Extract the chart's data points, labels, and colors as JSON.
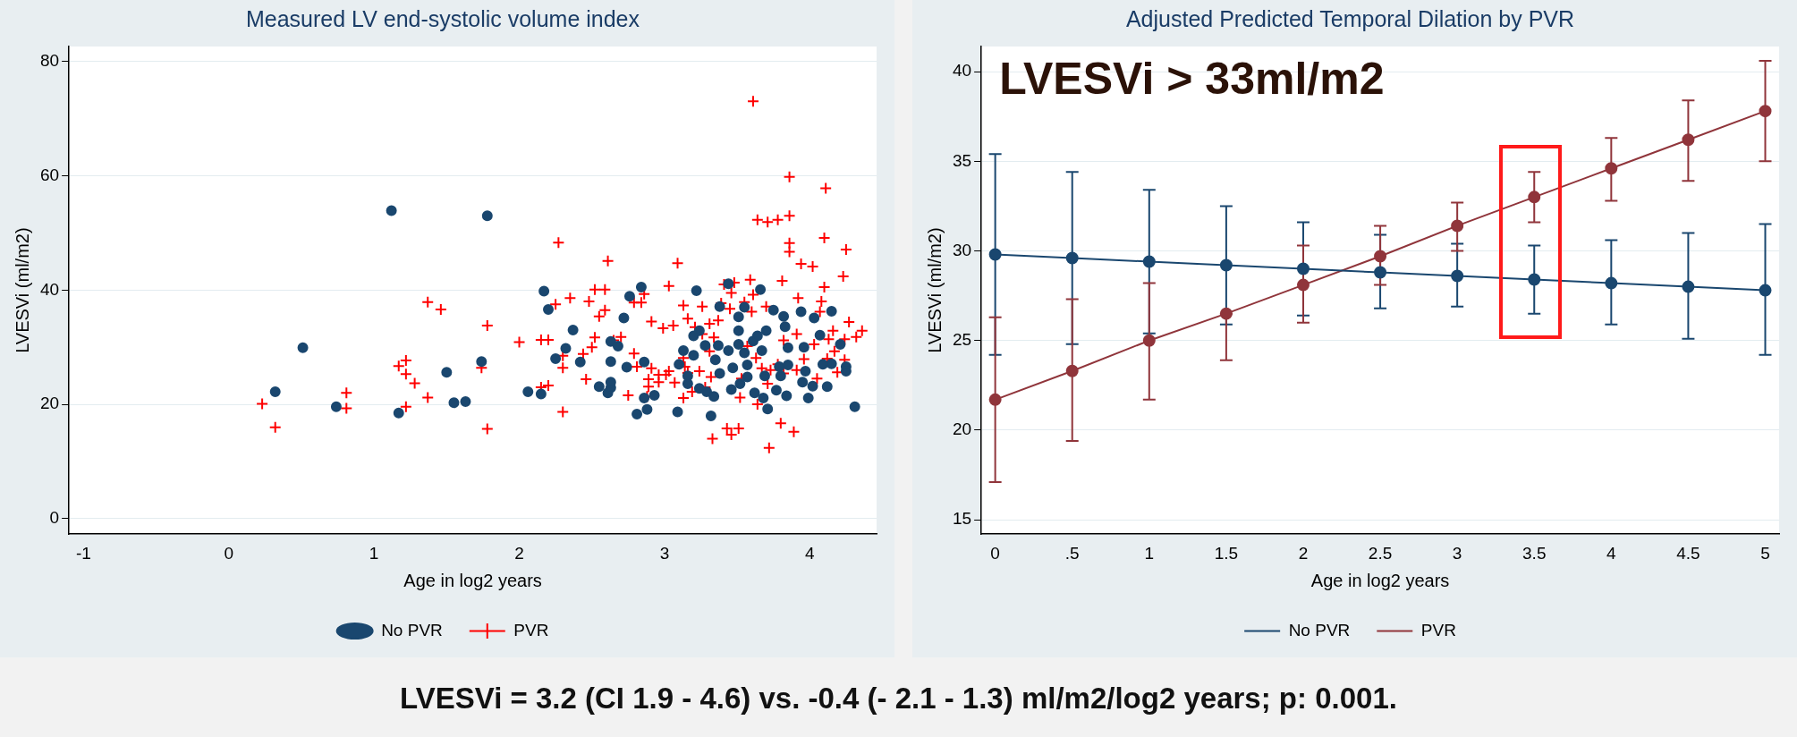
{
  "chart_data": [
    {
      "type": "scatter",
      "title": "Measured LV end-systolic volume index",
      "xlabel": "Age in log2 years",
      "ylabel": "LVESVi (ml/m2)",
      "xlim": [
        -1.1,
        4.46
      ],
      "ylim": [
        -2.7,
        82.6
      ],
      "xticks": [
        -1,
        0,
        1,
        2,
        3,
        4
      ],
      "yticks": [
        0,
        20,
        40,
        60,
        80
      ],
      "grid": "y",
      "legend": "bottom",
      "series": [
        {
          "name": "No PVR",
          "color": "#1a476f",
          "marker": "circle",
          "x": [
            1.12,
            1.78,
            0.51,
            0.32,
            0.74,
            1.17,
            1.5,
            1.55,
            1.63,
            1.74,
            2.06,
            2.15,
            2.17,
            2.2,
            2.25,
            2.32,
            2.37,
            2.42,
            2.55,
            2.61,
            2.63,
            2.63,
            2.63,
            2.63,
            2.68,
            2.72,
            2.74,
            2.76,
            2.81,
            2.84,
            2.86,
            2.86,
            2.88,
            2.93,
            3.09,
            3.1,
            3.13,
            3.16,
            3.16,
            3.2,
            3.2,
            3.22,
            3.24,
            3.24,
            3.28,
            3.29,
            3.32,
            3.34,
            3.35,
            3.37,
            3.38,
            3.38,
            3.44,
            3.44,
            3.46,
            3.47,
            3.51,
            3.51,
            3.51,
            3.52,
            3.55,
            3.55,
            3.57,
            3.57,
            3.61,
            3.62,
            3.64,
            3.66,
            3.67,
            3.68,
            3.7,
            3.71,
            3.69,
            3.75,
            3.77,
            3.79,
            3.8,
            3.82,
            3.83,
            3.84,
            3.85,
            3.85,
            3.94,
            3.95,
            3.96,
            3.97,
            3.99,
            4.02,
            4.03,
            4.07,
            4.09,
            4.12,
            4.15,
            4.15,
            4.21,
            4.25,
            4.25,
            4.31
          ],
          "values": [
            53.9,
            53,
            29.9,
            22.2,
            19.6,
            18.5,
            25.6,
            20.3,
            20.5,
            27.5,
            22.2,
            21.8,
            39.8,
            36.6,
            28,
            29.8,
            33,
            27.4,
            23.1,
            22,
            22.9,
            23.9,
            27.5,
            31,
            30.2,
            35.1,
            26.5,
            38.9,
            18.3,
            40.5,
            27.4,
            21.1,
            19.1,
            21.6,
            18.7,
            27,
            29.4,
            23.6,
            25,
            28.6,
            32,
            39.9,
            22.8,
            32.9,
            30.3,
            22.2,
            18,
            21.4,
            27.8,
            30.3,
            37.1,
            25.4,
            29.4,
            41.1,
            22.6,
            26.4,
            32.9,
            30.5,
            35.3,
            23.6,
            37,
            29,
            26.9,
            24.8,
            31.1,
            22,
            32,
            40.1,
            29.4,
            21.1,
            32.9,
            19.2,
            25,
            36.5,
            22.5,
            26.6,
            25,
            35.4,
            33.6,
            21.5,
            26.9,
            29.9,
            36.2,
            23.9,
            30,
            25.8,
            21.1,
            23.2,
            35.1,
            32.1,
            27,
            23.1,
            36.3,
            27.1,
            30.5,
            26.6,
            25.8,
            19.6
          ]
        },
        {
          "name": "PVR",
          "color": "#ff0000",
          "marker": "cross",
          "x": [
            0.23,
            0.32,
            0.81,
            0.81,
            1.17,
            1.22,
            1.22,
            1.28,
            1.22,
            1.37,
            1.46,
            1.37,
            1.78,
            1.74,
            1.78,
            2.0,
            2.15,
            2.2,
            2.15,
            2.2,
            2.25,
            2.27,
            2.3,
            2.3,
            2.3,
            2.35,
            2.44,
            2.46,
            2.48,
            2.5,
            2.52,
            2.52,
            2.55,
            2.59,
            2.59,
            2.61,
            2.65,
            2.7,
            2.75,
            2.79,
            2.79,
            2.81,
            2.84,
            2.86,
            2.88,
            2.89,
            2.89,
            2.91,
            2.91,
            2.96,
            2.96,
            2.99,
            3.01,
            3.03,
            3.03,
            3.06,
            3.07,
            3.09,
            3.13,
            3.13,
            3.13,
            3.14,
            3.16,
            3.16,
            3.19,
            3.21,
            3.24,
            3.26,
            3.26,
            3.28,
            3.31,
            3.31,
            3.32,
            3.33,
            3.34,
            3.37,
            3.39,
            3.41,
            3.43,
            3.45,
            3.46,
            3.46,
            3.48,
            3.51,
            3.52,
            3.53,
            3.55,
            3.57,
            3.59,
            3.6,
            3.61,
            3.61,
            3.63,
            3.64,
            3.64,
            3.67,
            3.7,
            3.71,
            3.71,
            3.72,
            3.73,
            3.78,
            3.78,
            3.8,
            3.81,
            3.82,
            3.82,
            3.86,
            3.86,
            3.86,
            3.86,
            3.89,
            3.91,
            3.91,
            3.92,
            3.94,
            3.96,
            4.02,
            4.03,
            4.05,
            4.07,
            4.08,
            4.1,
            4.1,
            4.11,
            4.12,
            4.13,
            4.16,
            4.17,
            4.19,
            4.23,
            4.24,
            4.24,
            4.25,
            4.27,
            4.32,
            4.36
          ],
          "values": [
            20.1,
            16,
            22,
            19.3,
            26.7,
            27.7,
            25.3,
            23.7,
            19.6,
            37.9,
            36.6,
            21.2,
            33.8,
            26.4,
            15.7,
            30.9,
            31.3,
            31.3,
            23,
            23.3,
            37.5,
            48.3,
            28.5,
            26.4,
            18.7,
            38.6,
            28.8,
            24.4,
            38,
            30,
            40.1,
            31.7,
            35.4,
            40.1,
            36.5,
            45.1,
            31.2,
            31.8,
            21.6,
            37.8,
            28.9,
            26.6,
            37.8,
            39.3,
            21.4,
            24.4,
            23.1,
            34.5,
            26.3,
            25.2,
            23.9,
            33.3,
            25.2,
            40.7,
            25.8,
            33.8,
            23.8,
            44.7,
            21.1,
            37.3,
            28.1,
            26.6,
            35,
            25.5,
            22.2,
            33.5,
            25.8,
            37.1,
            32.3,
            23,
            34.1,
            29.3,
            24.8,
            14,
            31.7,
            34.7,
            37.7,
            41,
            15.8,
            36.7,
            14.7,
            39.5,
            41.3,
            15.8,
            21.2,
            24.5,
            37.9,
            30.2,
            41.8,
            36.2,
            73,
            39.2,
            28.1,
            20,
            52.3,
            26.3,
            37.1,
            23.6,
            51.9,
            12.4,
            26,
            52.3,
            27,
            16.7,
            41.6,
            31.2,
            25.4,
            53,
            46.7,
            59.8,
            48.2,
            15.2,
            32.3,
            26,
            38.6,
            44.6,
            27.9,
            44.1,
            30.5,
            24.5,
            36.2,
            38,
            40.5,
            49.1,
            57.8,
            28,
            31.4,
            32.9,
            29.3,
            25.6,
            42.4,
            27.8,
            31.4,
            47.1,
            34.4,
            31.8,
            32.9
          ]
        }
      ]
    },
    {
      "type": "line",
      "title": "Adjusted Predicted Temporal Dilation by PVR",
      "xlabel": "Age in log2 years",
      "ylabel": "LVESVi (ml/m2)",
      "xlim": [
        -0.09,
        5.09
      ],
      "ylim": [
        14.2,
        41.4
      ],
      "xticks": [
        0,
        {
          "value": 0.5,
          "label": ".5"
        },
        1,
        1.5,
        2,
        2.5,
        3,
        3.5,
        4,
        4.5,
        5
      ],
      "yticks": [
        15,
        20,
        25,
        30,
        35,
        40
      ],
      "grid": "y",
      "legend": "bottom",
      "marker": "circle",
      "annotations": [
        "LVESVi > 33ml/m2"
      ],
      "x": [
        0,
        0.5,
        1,
        1.5,
        2,
        2.5,
        3,
        3.5,
        4,
        4.5,
        5
      ],
      "series": [
        {
          "name": "No PVR",
          "color": "#1a476f",
          "values": [
            29.8,
            29.6,
            29.4,
            29.2,
            29.0,
            28.8,
            28.6,
            28.4,
            28.2,
            28.0,
            27.8
          ],
          "errors": [
            [
              24.2,
              35.4
            ],
            [
              24.8,
              34.4
            ],
            [
              25.4,
              33.4
            ],
            [
              25.9,
              32.5
            ],
            [
              26.4,
              31.6
            ],
            [
              26.8,
              30.9
            ],
            [
              26.9,
              30.4
            ],
            [
              26.5,
              30.3
            ],
            [
              25.9,
              30.6
            ],
            [
              25.1,
              31.0
            ],
            [
              24.2,
              31.5
            ]
          ]
        },
        {
          "name": "PVR",
          "color": "#90353b",
          "values": [
            21.7,
            23.3,
            25.0,
            26.5,
            28.1,
            29.7,
            31.4,
            33.0,
            34.6,
            36.2,
            37.8
          ],
          "errors": [
            [
              17.1,
              26.3
            ],
            [
              19.4,
              27.3
            ],
            [
              21.7,
              28.2
            ],
            [
              23.9,
              26.5
            ],
            [
              26.0,
              30.3
            ],
            [
              28.1,
              31.4
            ],
            [
              30.0,
              32.7
            ],
            [
              31.6,
              34.4
            ],
            [
              32.8,
              36.3
            ],
            [
              33.9,
              38.4
            ],
            [
              35.0,
              40.6
            ]
          ]
        }
      ]
    },
    {
      "type": "other",
      "annotations": [
        "LVESVi = 3.2 (CI 1.9 - 4.6) vs. -0.4 (- 2.1 - 1.3) ml/m2/log2 years; p: 0.001."
      ]
    }
  ]
}
